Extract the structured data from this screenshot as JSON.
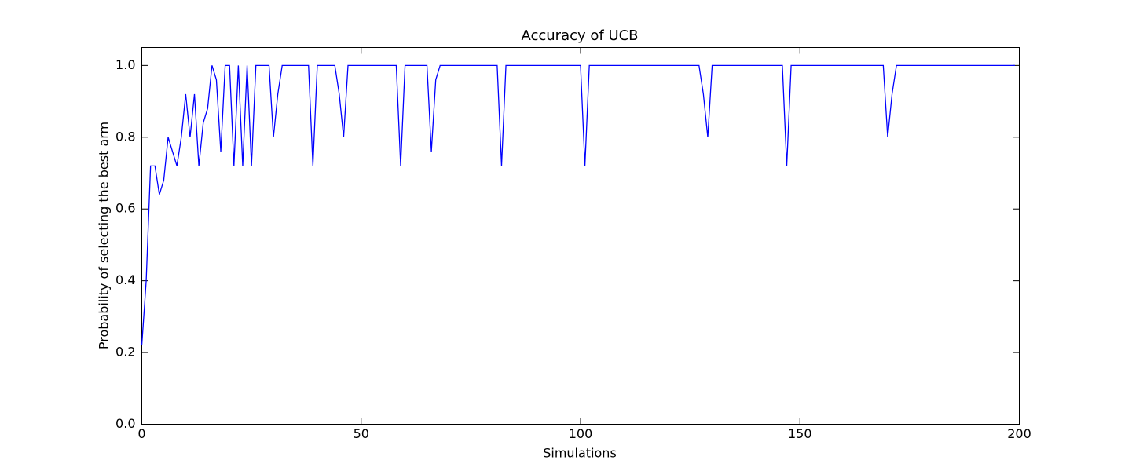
{
  "chart_data": {
    "type": "line",
    "title": "Accuracy of UCB",
    "x_label": "Simulations",
    "y_label": "Probability of selecting the best arm",
    "x": [
      0,
      1,
      2,
      3,
      4,
      5,
      6,
      7,
      8,
      9,
      10,
      11,
      12,
      13,
      14,
      15,
      16,
      17,
      18,
      19,
      20,
      21,
      22,
      23,
      24,
      25,
      26,
      27,
      28,
      29,
      30,
      31,
      32,
      33,
      34,
      35,
      36,
      37,
      38,
      39,
      40,
      41,
      42,
      43,
      44,
      45,
      46,
      47,
      48,
      49,
      50,
      51,
      52,
      53,
      54,
      55,
      56,
      57,
      58,
      59,
      60,
      61,
      62,
      63,
      64,
      65,
      66,
      67,
      68,
      69,
      70,
      71,
      72,
      73,
      74,
      75,
      76,
      77,
      78,
      79,
      80,
      81,
      82,
      83,
      84,
      85,
      86,
      87,
      88,
      89,
      90,
      91,
      92,
      93,
      94,
      95,
      96,
      97,
      98,
      99,
      100,
      101,
      102,
      103,
      104,
      105,
      106,
      107,
      108,
      109,
      110,
      111,
      112,
      113,
      114,
      115,
      116,
      117,
      118,
      119,
      120,
      121,
      122,
      123,
      124,
      125,
      126,
      127,
      128,
      129,
      130,
      131,
      132,
      133,
      134,
      135,
      136,
      137,
      138,
      139,
      140,
      141,
      142,
      143,
      144,
      145,
      146,
      147,
      148,
      149,
      150,
      151,
      152,
      153,
      154,
      155,
      156,
      157,
      158,
      159,
      160,
      161,
      162,
      163,
      164,
      165,
      166,
      167,
      168,
      169,
      170,
      171,
      172,
      173,
      174,
      175,
      176,
      177,
      178,
      179,
      180,
      181,
      182,
      183,
      184,
      185,
      186,
      187,
      188,
      189,
      190,
      191,
      192,
      193,
      194,
      195,
      196,
      197,
      198,
      199
    ],
    "series": [
      {
        "name": "UCB",
        "color": "#0000ff",
        "values": [
          0.22,
          0.4,
          0.72,
          0.72,
          0.64,
          0.68,
          0.8,
          0.76,
          0.72,
          0.8,
          0.92,
          0.8,
          0.92,
          0.72,
          0.84,
          0.88,
          1.0,
          0.96,
          0.76,
          1.0,
          1.0,
          0.72,
          1.0,
          0.72,
          1.0,
          0.72,
          1.0,
          1.0,
          1.0,
          1.0,
          0.8,
          0.92,
          1.0,
          1.0,
          1.0,
          1.0,
          1.0,
          1.0,
          1.0,
          0.72,
          1.0,
          1.0,
          1.0,
          1.0,
          1.0,
          0.92,
          0.8,
          1.0,
          1.0,
          1.0,
          1.0,
          1.0,
          1.0,
          1.0,
          1.0,
          1.0,
          1.0,
          1.0,
          1.0,
          0.72,
          1.0,
          1.0,
          1.0,
          1.0,
          1.0,
          1.0,
          0.76,
          0.96,
          1.0,
          1.0,
          1.0,
          1.0,
          1.0,
          1.0,
          1.0,
          1.0,
          1.0,
          1.0,
          1.0,
          1.0,
          1.0,
          1.0,
          0.72,
          1.0,
          1.0,
          1.0,
          1.0,
          1.0,
          1.0,
          1.0,
          1.0,
          1.0,
          1.0,
          1.0,
          1.0,
          1.0,
          1.0,
          1.0,
          1.0,
          1.0,
          1.0,
          0.72,
          1.0,
          1.0,
          1.0,
          1.0,
          1.0,
          1.0,
          1.0,
          1.0,
          1.0,
          1.0,
          1.0,
          1.0,
          1.0,
          1.0,
          1.0,
          1.0,
          1.0,
          1.0,
          1.0,
          1.0,
          1.0,
          1.0,
          1.0,
          1.0,
          1.0,
          1.0,
          0.92,
          0.8,
          1.0,
          1.0,
          1.0,
          1.0,
          1.0,
          1.0,
          1.0,
          1.0,
          1.0,
          1.0,
          1.0,
          1.0,
          1.0,
          1.0,
          1.0,
          1.0,
          1.0,
          0.72,
          1.0,
          1.0,
          1.0,
          1.0,
          1.0,
          1.0,
          1.0,
          1.0,
          1.0,
          1.0,
          1.0,
          1.0,
          1.0,
          1.0,
          1.0,
          1.0,
          1.0,
          1.0,
          1.0,
          1.0,
          1.0,
          1.0,
          0.8,
          0.92,
          1.0,
          1.0,
          1.0,
          1.0,
          1.0,
          1.0,
          1.0,
          1.0,
          1.0,
          1.0,
          1.0,
          1.0,
          1.0,
          1.0,
          1.0,
          1.0,
          1.0,
          1.0,
          1.0,
          1.0,
          1.0,
          1.0,
          1.0,
          1.0,
          1.0,
          1.0,
          1.0,
          1.0
        ]
      }
    ],
    "xlim": [
      0,
      200
    ],
    "xticks": [
      0,
      50,
      100,
      150,
      200
    ],
    "ylim": [
      0,
      1.05
    ],
    "yticks": [
      {
        "value": 0,
        "label": "0.0"
      },
      {
        "value": 0.2,
        "label": "0.2"
      },
      {
        "value": 0.4,
        "label": "0.4"
      },
      {
        "value": 0.6,
        "label": "0.6"
      },
      {
        "value": 0.8,
        "label": "0.8"
      },
      {
        "value": 1.0,
        "label": "1.0"
      }
    ],
    "grid": false
  }
}
